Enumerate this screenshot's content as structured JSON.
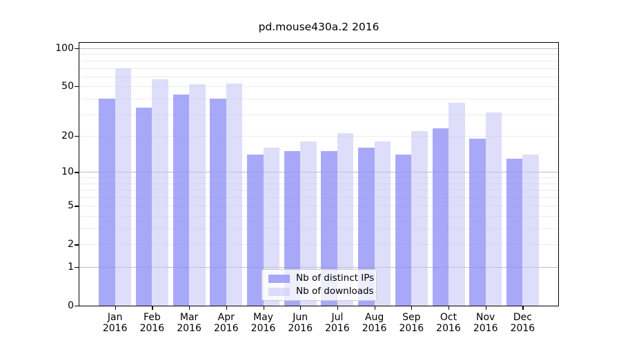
{
  "chart_data": {
    "type": "bar",
    "title": "pd.mouse430a.2 2016",
    "categories": [
      "Jan",
      "Feb",
      "Mar",
      "Apr",
      "May",
      "Jun",
      "Jul",
      "Aug",
      "Sep",
      "Oct",
      "Nov",
      "Dec"
    ],
    "year_label": "2016",
    "series": [
      {
        "name": "Nb of distinct IPs",
        "color": "#9292f7",
        "opacity": 0.8,
        "values": [
          40,
          34,
          43,
          40,
          14,
          15,
          15,
          16,
          14,
          23,
          19,
          13
        ]
      },
      {
        "name": "Nb of downloads",
        "color": "#c6c6f6",
        "opacity": 0.58,
        "values": [
          70,
          57,
          52,
          53,
          16,
          18,
          21,
          18,
          22,
          37,
          31,
          14
        ]
      }
    ],
    "yscale": "log1p",
    "yticks": [
      0,
      1,
      2,
      5,
      10,
      20,
      50,
      100
    ],
    "minor_gridlines": [
      2,
      3,
      4,
      5,
      6,
      7,
      8,
      9,
      20,
      30,
      40,
      50,
      60,
      70,
      80,
      90
    ],
    "major_gridlines": [
      1,
      10,
      100
    ],
    "ylim": [
      0,
      110
    ],
    "grid": true,
    "legend_position": "lower center inside"
  },
  "colors": {
    "major_grid": "#bdbdbd",
    "minor_grid": "#ebebeb",
    "frame": "#000000",
    "text": "#000000",
    "legend_border": "#cccccc"
  }
}
